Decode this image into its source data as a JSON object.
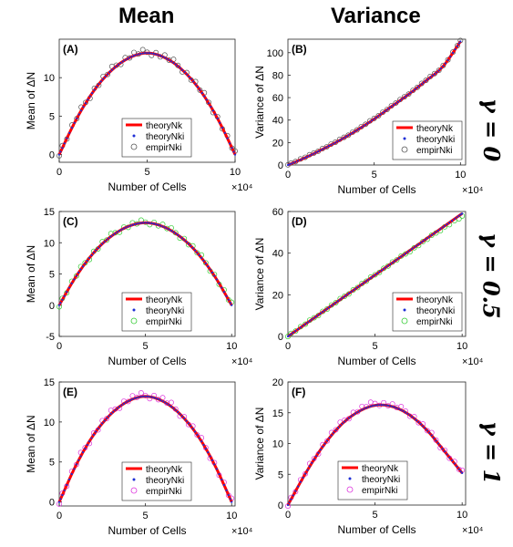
{
  "figure": {
    "column_titles": [
      "Mean",
      "Variance"
    ],
    "row_labels": [
      "γ = 0",
      "γ = 0.5",
      "γ = 1"
    ]
  },
  "chart_data": [
    {
      "type": "scatter",
      "panel": "(A)",
      "xlabel": "Number of Cells",
      "ylabel": "Mean of ΔN",
      "x_exponent": "×10⁴",
      "xlim": [
        0,
        10
      ],
      "ylim": [
        -1,
        15
      ],
      "xticks": [
        0,
        5,
        10
      ],
      "yticks": [
        0,
        5,
        10
      ],
      "legend": [
        "theoryNk",
        "theoryNki",
        "empirNki"
      ],
      "empir_color": "#555555",
      "series": [
        {
          "name": "theoryNk",
          "x": [
            0,
            1,
            2,
            3,
            4,
            5,
            6,
            7,
            8,
            9,
            10
          ],
          "y": [
            0,
            4.7,
            8.4,
            11.0,
            12.6,
            13.2,
            12.6,
            11.0,
            8.4,
            4.7,
            0
          ]
        },
        {
          "name": "theoryNki",
          "x": [
            0,
            1,
            2,
            3,
            4,
            5,
            6,
            7,
            8,
            9,
            10
          ],
          "y": [
            0,
            4.7,
            8.4,
            11.0,
            12.6,
            13.2,
            12.6,
            11.0,
            8.4,
            4.7,
            0
          ]
        },
        {
          "name": "empirNki",
          "x": [
            0,
            1,
            2,
            3,
            4,
            5,
            6,
            7,
            8,
            9,
            10
          ],
          "y": [
            0.2,
            4.8,
            8.5,
            11.1,
            12.8,
            13.3,
            12.7,
            11.1,
            8.5,
            4.8,
            0.1
          ]
        }
      ]
    },
    {
      "type": "scatter",
      "panel": "(B)",
      "xlabel": "Number of Cells",
      "ylabel": "Variance of ΔN",
      "x_exponent": "×10⁴",
      "xlim": [
        0,
        10.3
      ],
      "ylim": [
        0,
        112
      ],
      "xticks": [
        0,
        5,
        10
      ],
      "yticks": [
        0,
        20,
        40,
        60,
        80,
        100
      ],
      "legend": [
        "theoryNk",
        "theoryNki",
        "empirNki"
      ],
      "empir_color": "#555555",
      "series": [
        {
          "name": "theoryNk",
          "x": [
            0,
            1,
            2,
            3,
            4,
            5,
            6,
            7,
            8,
            9,
            10
          ],
          "y": [
            0,
            6.5,
            14,
            22,
            31,
            41,
            52,
            63,
            75,
            88,
            110
          ]
        },
        {
          "name": "theoryNki",
          "x": [
            0,
            1,
            2,
            3,
            4,
            5,
            6,
            7,
            8,
            9,
            10
          ],
          "y": [
            0,
            6.5,
            14,
            22,
            31,
            41,
            52,
            63,
            75,
            88,
            110
          ]
        },
        {
          "name": "empirNki",
          "x": [
            0,
            1,
            2,
            3,
            4,
            5,
            6,
            7,
            8,
            9,
            10
          ],
          "y": [
            0.5,
            7,
            14.5,
            22.5,
            31.5,
            41.5,
            52.5,
            63.5,
            75.5,
            88.5,
            110.5
          ]
        }
      ]
    },
    {
      "type": "scatter",
      "panel": "(C)",
      "xlabel": "Number of Cells",
      "ylabel": "Mean of ΔN",
      "x_exponent": "×10⁴",
      "xlim": [
        0,
        10.2
      ],
      "ylim": [
        -5,
        15
      ],
      "xticks": [
        0,
        5,
        10
      ],
      "yticks": [
        -5,
        0,
        5,
        10,
        15
      ],
      "legend": [
        "theoryNk",
        "theoryNki",
        "empirNki"
      ],
      "empir_color": "#33cc33",
      "series": [
        {
          "name": "theoryNk",
          "x": [
            0,
            1,
            2,
            3,
            4,
            5,
            6,
            7,
            8,
            9,
            10
          ],
          "y": [
            0,
            4.7,
            8.4,
            11.0,
            12.6,
            13.2,
            12.6,
            11.0,
            8.4,
            4.7,
            0
          ]
        },
        {
          "name": "theoryNki",
          "x": [
            0,
            1,
            2,
            3,
            4,
            5,
            6,
            7,
            8,
            9,
            10
          ],
          "y": [
            0,
            4.7,
            8.4,
            11.0,
            12.6,
            13.2,
            12.6,
            11.0,
            8.4,
            4.7,
            0
          ]
        },
        {
          "name": "empirNki",
          "x": [
            0,
            1,
            2,
            3,
            4,
            5,
            6,
            7,
            8,
            9,
            10
          ],
          "y": [
            0.1,
            4.8,
            8.5,
            11.1,
            12.7,
            13.3,
            12.7,
            11.1,
            8.5,
            4.8,
            0.1
          ]
        }
      ]
    },
    {
      "type": "scatter",
      "panel": "(D)",
      "xlabel": "Number of Cells",
      "ylabel": "Variance of ΔN",
      "x_exponent": "×10⁴",
      "xlim": [
        0,
        10.2
      ],
      "ylim": [
        0,
        60
      ],
      "xticks": [
        0,
        5,
        10
      ],
      "yticks": [
        0,
        20,
        40,
        60
      ],
      "legend": [
        "theoryNk",
        "theoryNki",
        "empirNki"
      ],
      "empir_color": "#33cc33",
      "series": [
        {
          "name": "theoryNk",
          "x": [
            0,
            1,
            2,
            3,
            4,
            5,
            6,
            7,
            8,
            9,
            10
          ],
          "y": [
            0,
            5.9,
            11.8,
            17.7,
            23.6,
            29.5,
            35.4,
            41.3,
            47.2,
            53.1,
            59
          ]
        },
        {
          "name": "theoryNki",
          "x": [
            0,
            1,
            2,
            3,
            4,
            5,
            6,
            7,
            8,
            9,
            10
          ],
          "y": [
            0,
            5.9,
            11.8,
            17.7,
            23.6,
            29.5,
            35.4,
            41.3,
            47.2,
            53.1,
            59
          ]
        },
        {
          "name": "empirNki",
          "x": [
            0,
            1,
            2,
            3,
            4,
            5,
            6,
            7,
            8,
            9,
            10
          ],
          "y": [
            0.3,
            6.0,
            11.9,
            17.8,
            23.7,
            29.6,
            35.5,
            41.0,
            46.8,
            52.5,
            57.5
          ]
        }
      ]
    },
    {
      "type": "scatter",
      "panel": "(E)",
      "xlabel": "Number of Cells",
      "ylabel": "Mean of ΔN",
      "x_exponent": "×10⁴",
      "xlim": [
        0,
        10.2
      ],
      "ylim": [
        -0.5,
        15
      ],
      "xticks": [
        0,
        5,
        10
      ],
      "yticks": [
        0,
        5,
        10,
        15
      ],
      "legend": [
        "theoryNk",
        "theoryNki",
        "empirNki"
      ],
      "empir_color": "#dd33dd",
      "series": [
        {
          "name": "theoryNk",
          "x": [
            0,
            1,
            2,
            3,
            4,
            5,
            6,
            7,
            8,
            9,
            10
          ],
          "y": [
            0,
            4.7,
            8.4,
            11.0,
            12.6,
            13.2,
            12.6,
            11.0,
            8.4,
            4.7,
            0
          ]
        },
        {
          "name": "theoryNki",
          "x": [
            0,
            1,
            2,
            3,
            4,
            5,
            6,
            7,
            8,
            9,
            10
          ],
          "y": [
            0,
            4.7,
            8.4,
            11.0,
            12.6,
            13.2,
            12.6,
            11.0,
            8.4,
            4.7,
            0
          ]
        },
        {
          "name": "empirNki",
          "x": [
            0,
            1,
            2,
            3,
            4,
            5,
            6,
            7,
            8,
            9,
            10
          ],
          "y": [
            0.1,
            4.8,
            8.5,
            11.1,
            12.8,
            13.3,
            12.8,
            11.1,
            8.5,
            4.8,
            0.1
          ]
        }
      ]
    },
    {
      "type": "scatter",
      "panel": "(F)",
      "xlabel": "Number of Cells",
      "ylabel": "Variance of ΔN",
      "x_exponent": "×10⁴",
      "xlim": [
        0,
        10.2
      ],
      "ylim": [
        0,
        20
      ],
      "xticks": [
        0,
        5,
        10
      ],
      "yticks": [
        0,
        5,
        10,
        15,
        20
      ],
      "legend": [
        "theoryNk",
        "theoryNki",
        "empirNki"
      ],
      "empir_color": "#dd33dd",
      "series": [
        {
          "name": "theoryNk",
          "x": [
            0,
            1,
            2,
            3,
            4,
            5,
            6,
            7,
            8,
            9,
            10
          ],
          "y": [
            0,
            5.1,
            9.5,
            12.9,
            15.1,
            16.2,
            16.0,
            14.6,
            12.1,
            8.7,
            5.2
          ]
        },
        {
          "name": "theoryNki",
          "x": [
            0,
            1,
            2,
            3,
            4,
            5,
            6,
            7,
            8,
            9,
            10
          ],
          "y": [
            0,
            5.1,
            9.5,
            12.9,
            15.1,
            16.2,
            16.0,
            14.6,
            12.1,
            8.7,
            5.2
          ]
        },
        {
          "name": "empirNki",
          "x": [
            0,
            1,
            2,
            3,
            4,
            5,
            6,
            7,
            8,
            9,
            10
          ],
          "y": [
            0.2,
            5.2,
            9.7,
            13.1,
            15.4,
            16.5,
            16.2,
            14.8,
            12.2,
            8.8,
            5.3
          ]
        }
      ]
    }
  ]
}
